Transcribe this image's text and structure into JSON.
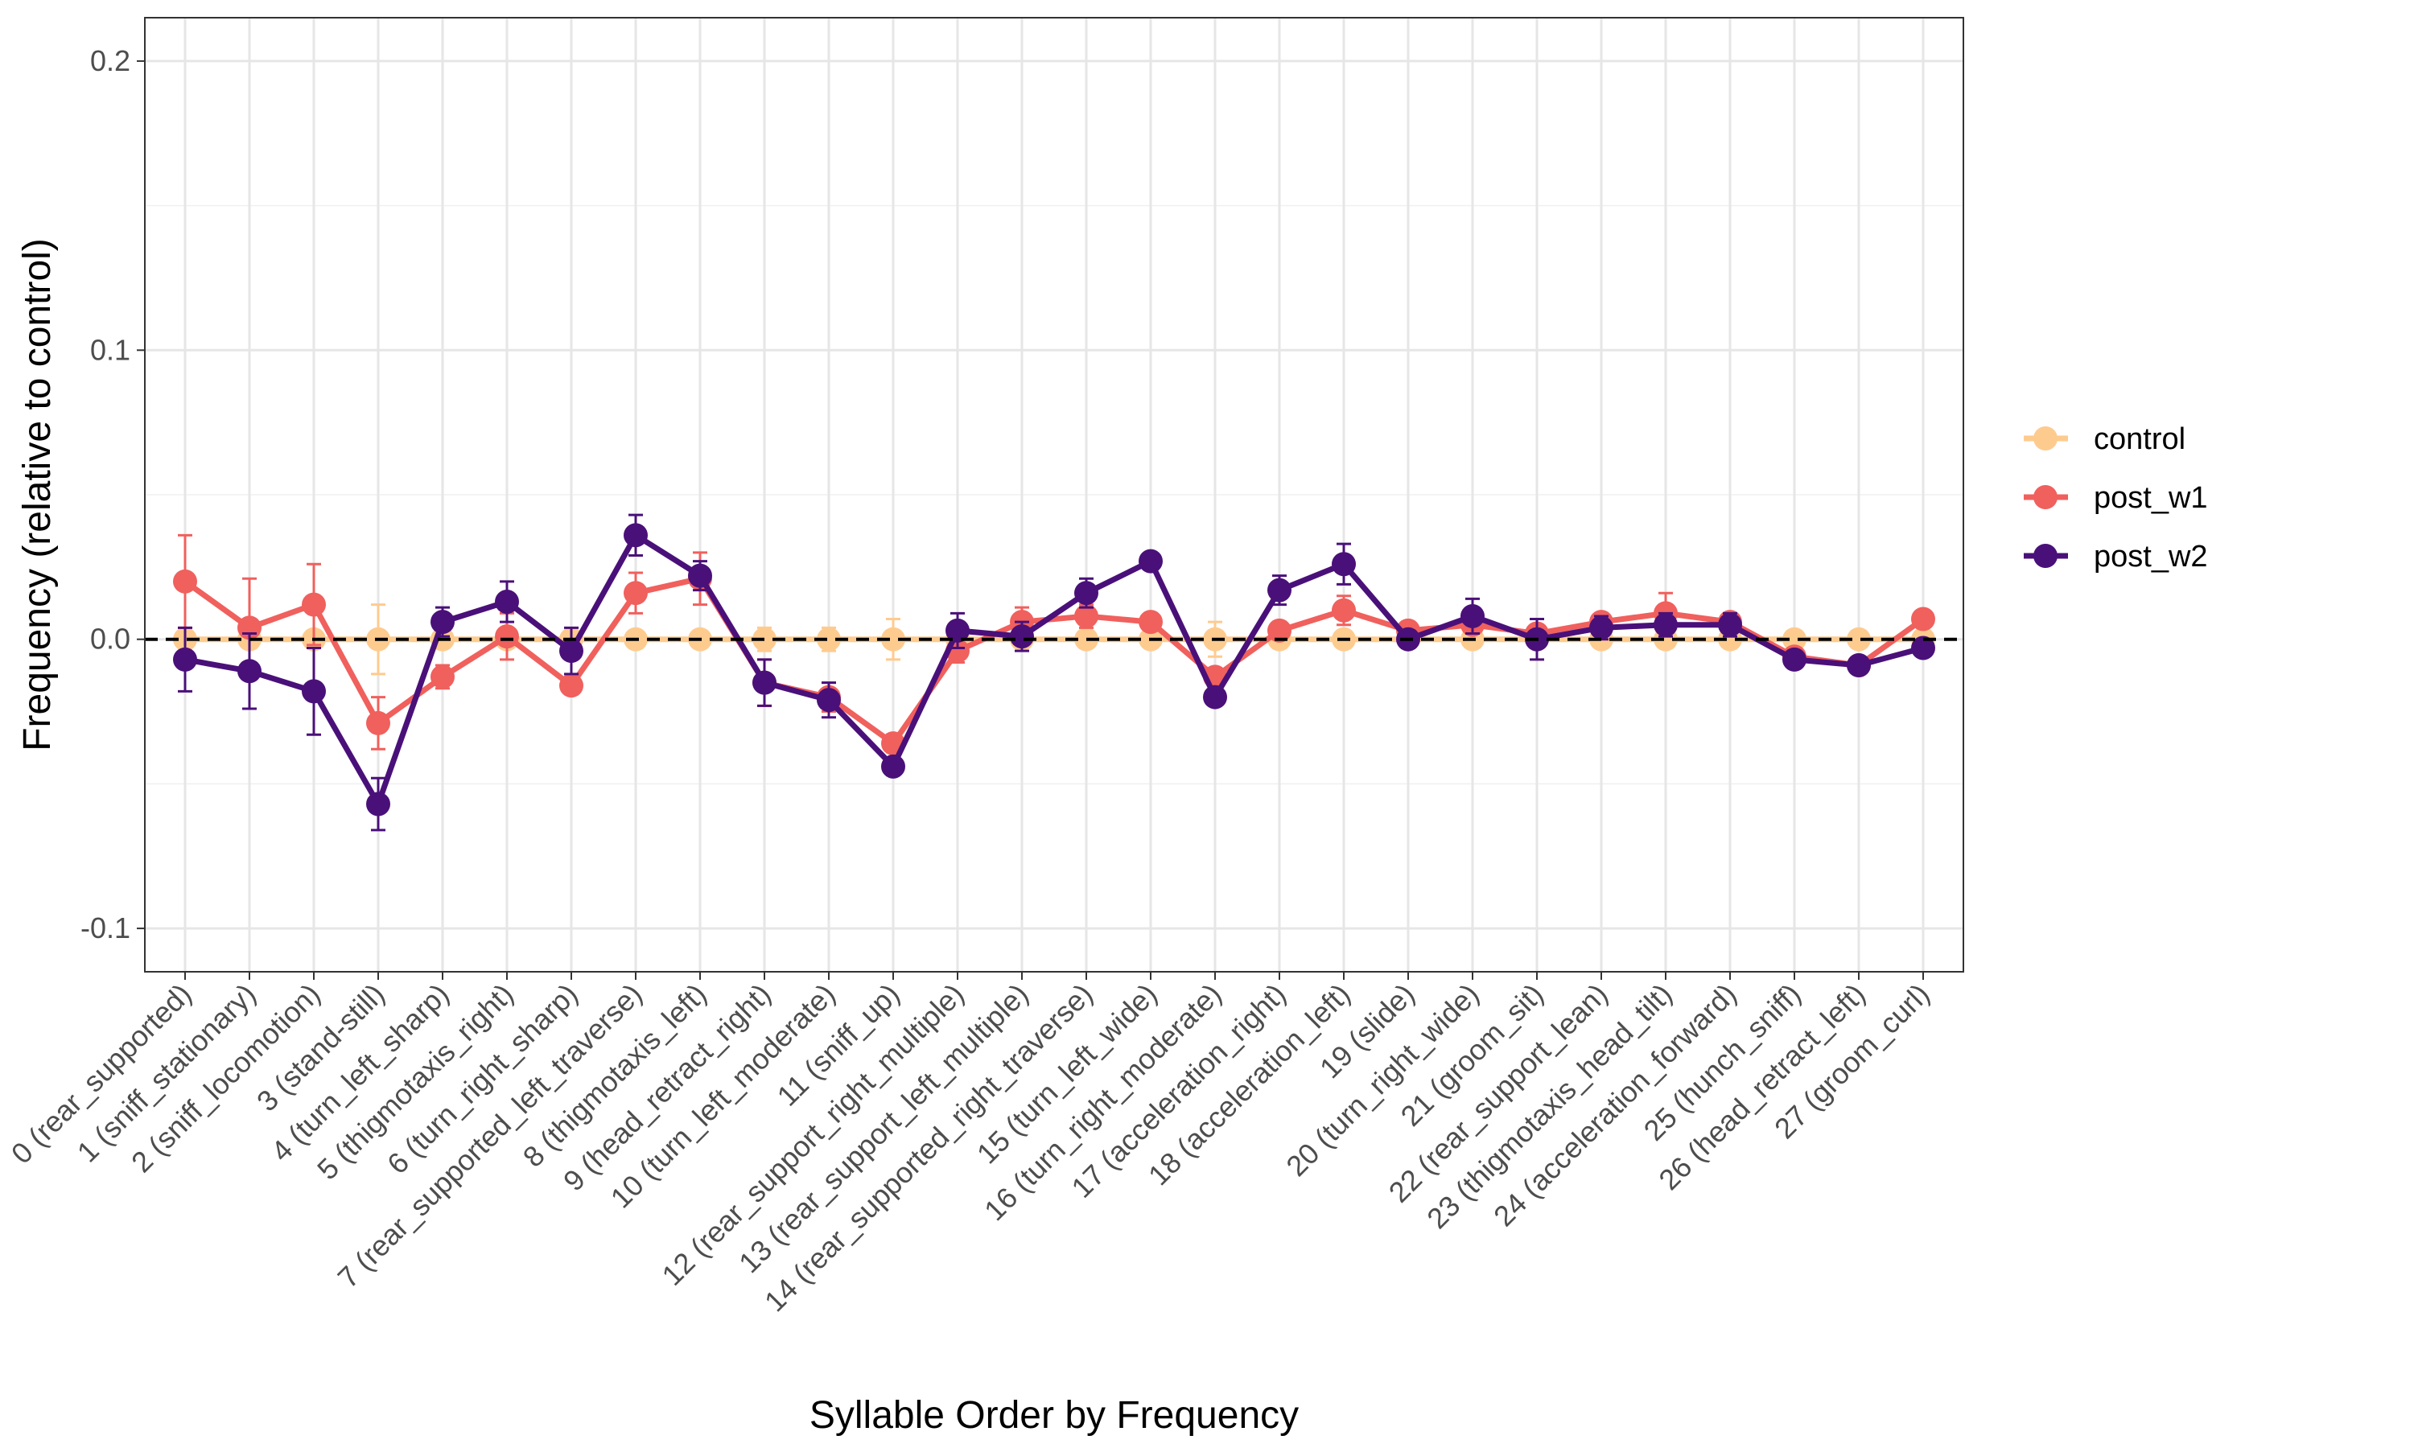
{
  "chart_data": {
    "type": "line",
    "xlabel": "Syllable Order by Frequency",
    "ylabel": "Frequency (relative to control)",
    "ylim": [
      -0.115,
      0.215
    ],
    "yticks": [
      -0.1,
      0.0,
      0.1,
      0.2
    ],
    "ytick_labels": [
      "-0.1",
      "0.0",
      "0.1",
      "0.2"
    ],
    "grid": true,
    "legend_position": "right",
    "reference_line": {
      "y": 0,
      "style": "dashed",
      "color": "#000000"
    },
    "categories": [
      "0 (rear_supported)",
      "1 (sniff_stationary)",
      "2 (sniff_locomotion)",
      "3 (stand-still)",
      "4 (turn_left_sharp)",
      "5 (thigmotaxis_right)",
      "6 (turn_right_sharp)",
      "7 (rear_supported_left_traverse)",
      "8 (thigmotaxis_left)",
      "9 (head_retract_right)",
      "10 (turn_left_moderate)",
      "11 (sniff_up)",
      "12 (rear_support_right_multiple)",
      "13 (rear_support_left_multiple)",
      "14 (rear_supported_right_traverse)",
      "15 (turn_left_wide)",
      "16 (turn_right_moderate)",
      "17 (acceleration_right)",
      "18 (acceleration_left)",
      "19 (slide)",
      "20 (turn_right_wide)",
      "21 (groom_sit)",
      "22 (rear_support_lean)",
      "23 (thigmotaxis_head_tilt)",
      "24 (acceleration_forward)",
      "25 (hunch_sniff)",
      "26 (head_retract_left)",
      "27 (groom_curl)"
    ],
    "series": [
      {
        "name": "control",
        "color": "#FECB8F",
        "values": [
          0,
          0,
          0,
          0,
          0,
          0,
          0,
          0,
          0,
          0,
          0,
          0,
          0,
          0,
          0,
          0,
          0,
          0,
          0,
          0,
          0,
          0,
          0,
          0,
          0,
          0,
          0,
          0
        ],
        "errors": [
          0.003,
          0.003,
          0.003,
          0.012,
          0.003,
          0.003,
          0.003,
          0.003,
          0.002,
          0.004,
          0.004,
          0.007,
          0.002,
          0.002,
          0.002,
          0.002,
          0.006,
          0.003,
          0.002,
          0.002,
          0.002,
          0.002,
          0.002,
          0.002,
          0.002,
          0.002,
          0.002,
          0.002
        ]
      },
      {
        "name": "post_w1",
        "color": "#F0605D",
        "values": [
          0.02,
          0.004,
          0.012,
          -0.029,
          -0.013,
          0.001,
          -0.016,
          0.016,
          0.021,
          -0.015,
          -0.02,
          -0.036,
          -0.004,
          0.006,
          0.008,
          0.006,
          -0.013,
          0.003,
          0.01,
          0.003,
          0.005,
          0.002,
          0.006,
          0.009,
          0.006,
          -0.006,
          -0.009,
          0.007
        ],
        "errors": [
          0.016,
          0.017,
          0.014,
          0.009,
          0.004,
          0.008,
          0.003,
          0.007,
          0.009,
          0.008,
          0.005,
          0.003,
          0.004,
          0.005,
          0.004,
          0.003,
          0.003,
          0.003,
          0.005,
          0.003,
          0.003,
          0.003,
          0.003,
          0.007,
          0.003,
          0.003,
          0.002,
          0.002
        ]
      },
      {
        "name": "post_w2",
        "color": "#4A1079",
        "values": [
          -0.007,
          -0.011,
          -0.018,
          -0.057,
          0.006,
          0.013,
          -0.004,
          0.036,
          0.022,
          -0.015,
          -0.021,
          -0.044,
          0.003,
          0.001,
          0.016,
          0.027,
          -0.02,
          0.017,
          0.026,
          0.0,
          0.008,
          0.0,
          0.004,
          0.005,
          0.005,
          -0.007,
          -0.009,
          -0.003
        ],
        "errors": [
          0.011,
          0.013,
          0.015,
          0.009,
          0.005,
          0.007,
          0.008,
          0.007,
          0.005,
          0.008,
          0.006,
          0.003,
          0.006,
          0.005,
          0.005,
          0.002,
          0.002,
          0.005,
          0.007,
          0.003,
          0.006,
          0.007,
          0.004,
          0.004,
          0.004,
          0.002,
          0.002,
          0.002
        ]
      }
    ]
  }
}
